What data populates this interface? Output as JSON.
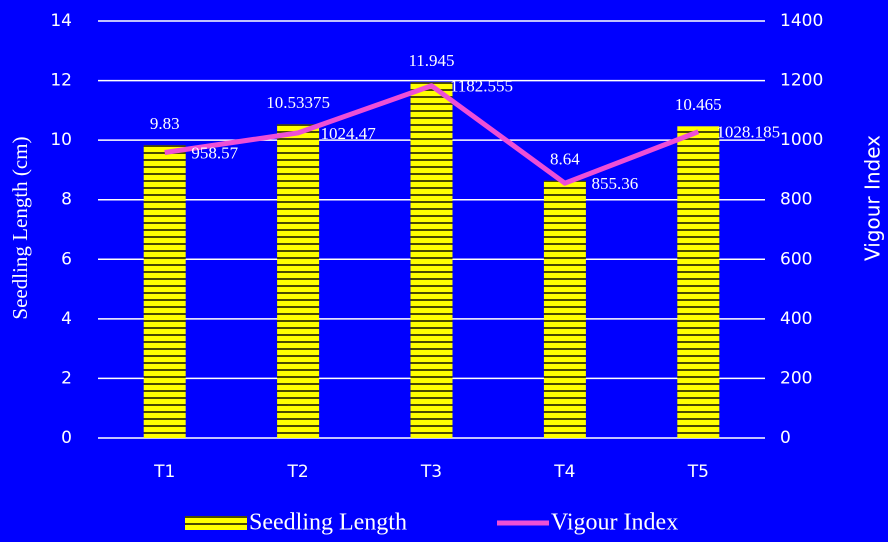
{
  "chart_data": {
    "type": "bar",
    "categories": [
      "T1",
      "T2",
      "T3",
      "T4",
      "T5"
    ],
    "series": [
      {
        "name": "Seedling Length",
        "type": "bar",
        "color": "#ffff00",
        "values": [
          9.83,
          10.53375,
          11.945,
          8.64,
          10.465
        ]
      },
      {
        "name": "Vigour Index",
        "type": "line",
        "axis": "y2",
        "color": "#ee4fd6",
        "values": [
          958.57,
          1024.47,
          1182.555,
          855.36,
          1028.185
        ]
      }
    ],
    "ylabel": "Seedling Length (cm)",
    "y2label": "Vigour Index",
    "ylim": [
      0,
      14
    ],
    "yticks": [
      0,
      2,
      4,
      6,
      8,
      10,
      12,
      14
    ],
    "y2lim": [
      0,
      1400
    ],
    "y2ticks": [
      0,
      200,
      400,
      600,
      800,
      1000,
      1200,
      1400
    ],
    "grid": true,
    "legend": "bottom",
    "background": "#0000ff"
  }
}
